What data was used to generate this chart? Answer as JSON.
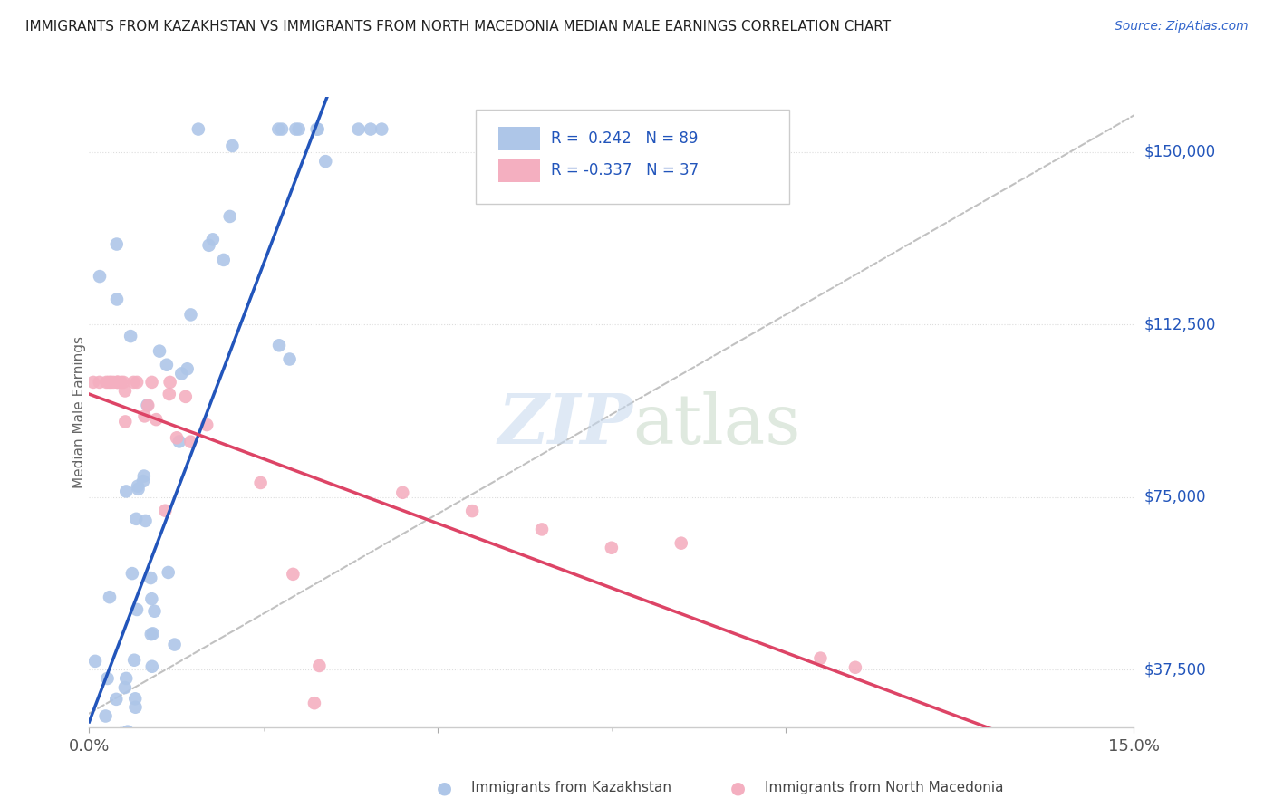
{
  "title": "IMMIGRANTS FROM KAZAKHSTAN VS IMMIGRANTS FROM NORTH MACEDONIA MEDIAN MALE EARNINGS CORRELATION CHART",
  "source": "Source: ZipAtlas.com",
  "ylabel": "Median Male Earnings",
  "yticks": [
    37500,
    75000,
    112500,
    150000
  ],
  "ytick_labels": [
    "$37,500",
    "$75,000",
    "$112,500",
    "$150,000"
  ],
  "xlim": [
    0.0,
    0.15
  ],
  "ylim": [
    25000,
    162000
  ],
  "legend_r1": "R =  0.242   N = 89",
  "legend_r2": "R = -0.337   N = 37",
  "watermark_zip": "ZIP",
  "watermark_atlas": "atlas",
  "color_kaz": "#aec6e8",
  "color_mac": "#f4afc0",
  "trendline_kaz_color": "#2255bb",
  "trendline_mac_color": "#dd4466",
  "trendline_dashed_color": "#bbbbbb",
  "grid_color": "#dddddd",
  "background": "#ffffff",
  "bottom_label_kaz": "Immigrants from Kazakhstan",
  "bottom_label_mac": "Immigrants from North Macedonia"
}
